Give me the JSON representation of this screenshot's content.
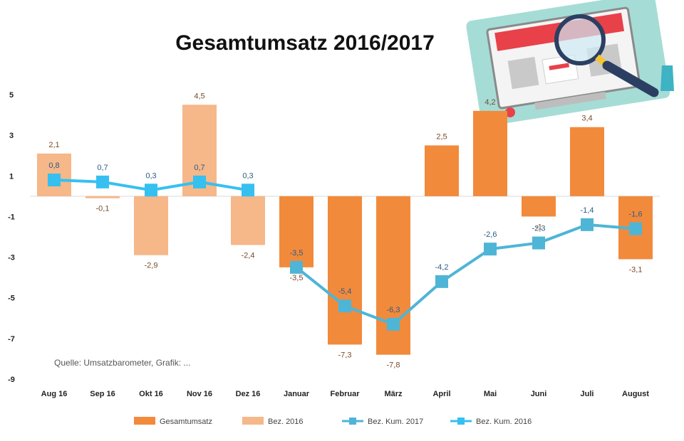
{
  "chart_data": {
    "type": "bar",
    "title": "Gesamtumsatz 2016/2017",
    "source_note": "Quelle: Umsatzbarometer, Grafik: ...",
    "categories": [
      "Aug 16",
      "Sep 16",
      "Okt 16",
      "Nov 16",
      "Dez 16",
      "Januar",
      "Februar",
      "März",
      "April",
      "Mai",
      "Juni",
      "Juli",
      "August"
    ],
    "ylim": [
      -9,
      5
    ],
    "yticks": [
      5,
      3,
      1,
      -1,
      -3,
      -5,
      -7,
      -9
    ],
    "ytick_labels": [
      "5",
      "3",
      "1",
      "-1",
      "-3",
      "-5",
      "-7",
      "-9"
    ],
    "grid": false,
    "legend_position": "bottom",
    "series": [
      {
        "name": "Gesamtumsatz",
        "kind": "bar",
        "color": "#f28a3c",
        "values": [
          null,
          null,
          null,
          null,
          null,
          -3.5,
          -7.3,
          -7.8,
          2.5,
          4.2,
          -1,
          3.4,
          -3.1
        ],
        "labels": [
          "",
          "",
          "",
          "",
          "",
          "-3,5",
          "-7,3",
          "-7,8",
          "2,5",
          "4,2",
          "-1",
          "3,4",
          "-3,1"
        ]
      },
      {
        "name": "Bez. 2016",
        "kind": "bar",
        "color": "#f6b789",
        "values": [
          2.1,
          -0.1,
          -2.9,
          4.5,
          -2.4,
          null,
          null,
          null,
          null,
          null,
          null,
          null,
          null
        ],
        "labels": [
          "2,1",
          "-0,1",
          "-2,9",
          "4,5",
          "-2,4",
          "",
          "",
          "",
          "",
          "",
          "",
          "",
          ""
        ]
      },
      {
        "name": "Bez. Kum. 2017",
        "kind": "line",
        "color": "#4eb5d6",
        "values": [
          null,
          null,
          null,
          null,
          null,
          -3.5,
          -5.4,
          -6.3,
          -4.2,
          -2.6,
          -2.3,
          -1.4,
          -1.6
        ],
        "labels": [
          "",
          "",
          "",
          "",
          "",
          "-3,5",
          "-5,4",
          "-6,3",
          "-4,2",
          "-2,6",
          "-2,3",
          "-1,4",
          "-1,6"
        ]
      },
      {
        "name": "Bez. Kum. 2016",
        "kind": "line",
        "color": "#36c0f0",
        "values": [
          0.8,
          0.7,
          0.3,
          0.7,
          0.3,
          null,
          null,
          null,
          null,
          null,
          null,
          null,
          null
        ],
        "labels": [
          "0,8",
          "0,7",
          "0,3",
          "0,7",
          "0,3",
          "",
          "",
          "",
          "",
          "",
          "",
          "",
          ""
        ]
      }
    ]
  },
  "legend": {
    "items": [
      {
        "label": "Gesamtumsatz",
        "color": "#f28a3c",
        "shape": "rect"
      },
      {
        "label": "Bez. 2016",
        "color": "#f6b789",
        "shape": "rect"
      },
      {
        "label": "Bez. Kum. 2017",
        "color": "#4eb5d6",
        "shape": "line-marker"
      },
      {
        "label": "Bez. Kum. 2016",
        "color": "#36c0f0",
        "shape": "line-marker"
      }
    ]
  },
  "decoration": {
    "icon": "magnifier-over-shop-screen-icon"
  }
}
